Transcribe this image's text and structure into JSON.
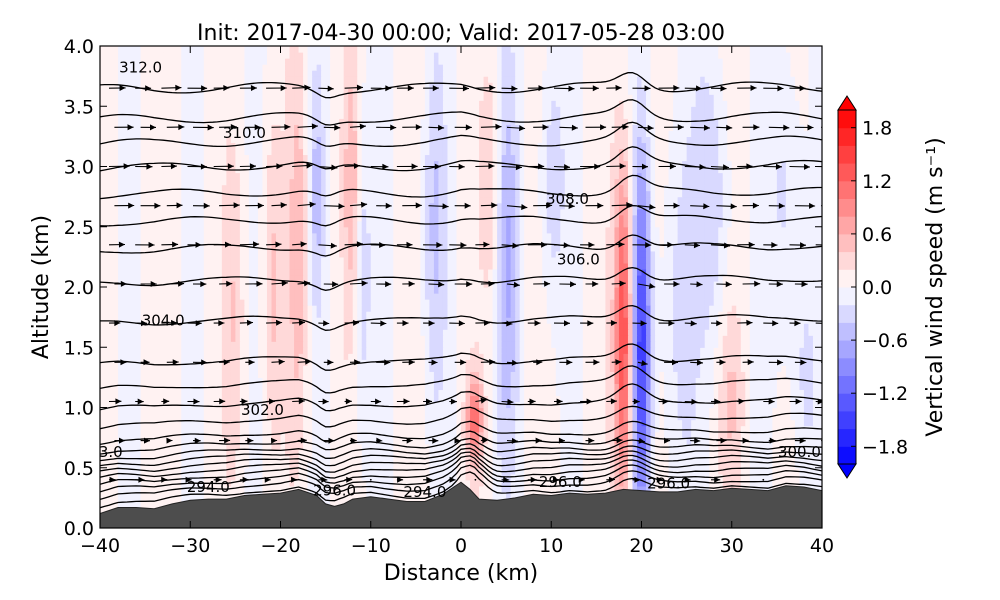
{
  "chart_data": {
    "type": "contour",
    "title": "Init: 2017-04-30 00:00; Valid: 2017-05-28 03:00",
    "xlabel": "Distance (km)",
    "ylabel": "Altitude (km)",
    "xlim": [
      -40,
      40
    ],
    "ylim": [
      0.0,
      4.0
    ],
    "x_ticks": [
      -40,
      -30,
      -20,
      -10,
      0,
      10,
      20,
      30,
      40
    ],
    "x_tick_labels": [
      "−40",
      "−30",
      "−20",
      "−10",
      "0",
      "10",
      "20",
      "30",
      "40"
    ],
    "y_ticks": [
      0.0,
      0.5,
      1.0,
      1.5,
      2.0,
      2.5,
      3.0,
      3.5,
      4.0
    ],
    "y_tick_labels": [
      "0.0",
      "0.5",
      "1.0",
      "1.5",
      "2.0",
      "2.5",
      "3.0",
      "3.5",
      "4.0"
    ],
    "colorbar": {
      "label": "Vertical wind speed (m s⁻¹)",
      "range": [
        -2.0,
        2.0
      ],
      "levels": [
        -2.0,
        -1.8,
        -1.6,
        -1.4,
        -1.2,
        -1.0,
        -0.8,
        -0.6,
        -0.4,
        -0.2,
        0.0,
        0.2,
        0.4,
        0.6,
        0.8,
        1.0,
        1.2,
        1.4,
        1.6,
        1.8,
        2.0
      ],
      "tick_values": [
        -1.8,
        -1.2,
        -0.6,
        0.0,
        0.6,
        1.2,
        1.8
      ],
      "tick_labels": [
        "−1.8",
        "−1.2",
        "−0.6",
        "0.0",
        "0.6",
        "1.2",
        "1.8"
      ],
      "colormap": "bwr"
    },
    "terrain": {
      "x": [
        -40,
        -38,
        -36,
        -34,
        -32,
        -30,
        -28,
        -26,
        -24,
        -22,
        -20,
        -18,
        -16,
        -15,
        -14,
        -13,
        -12,
        -10,
        -8,
        -6,
        -4,
        -2,
        0,
        1,
        2,
        4,
        6,
        8,
        10,
        12,
        14,
        16,
        18,
        20,
        22,
        24,
        26,
        28,
        30,
        32,
        34,
        36,
        38,
        40
      ],
      "z": [
        0.12,
        0.17,
        0.17,
        0.16,
        0.2,
        0.23,
        0.24,
        0.24,
        0.27,
        0.28,
        0.29,
        0.32,
        0.27,
        0.2,
        0.18,
        0.2,
        0.24,
        0.26,
        0.24,
        0.22,
        0.22,
        0.28,
        0.38,
        0.32,
        0.24,
        0.23,
        0.25,
        0.28,
        0.27,
        0.29,
        0.28,
        0.29,
        0.32,
        0.31,
        0.3,
        0.3,
        0.32,
        0.31,
        0.33,
        0.32,
        0.31,
        0.35,
        0.34,
        0.31
      ]
    },
    "theta_contours": {
      "levels": [
        290,
        291,
        292,
        293,
        294,
        295,
        296,
        297,
        298,
        299,
        300,
        301,
        302,
        303,
        304,
        305,
        306,
        307,
        308,
        309,
        310,
        311,
        312
      ],
      "base_altitude_km": [
        0.26,
        0.32,
        0.37,
        0.42,
        0.47,
        0.52,
        0.57,
        0.62,
        0.68,
        0.76,
        0.88,
        1.02,
        1.18,
        1.38,
        1.72,
        2.05,
        2.32,
        2.55,
        2.78,
        3.0,
        3.2,
        3.4,
        3.65
      ],
      "label_units": "K"
    },
    "contour_labels": [
      {
        "text": "312.0",
        "x": -35.5,
        "y": 3.82
      },
      {
        "text": "310.0",
        "x": -24.0,
        "y": 3.28
      },
      {
        "text": "308.0",
        "x": 11.8,
        "y": 2.73
      },
      {
        "text": "306.0",
        "x": 13.0,
        "y": 2.23
      },
      {
        "text": "304.0",
        "x": -33.0,
        "y": 1.72
      },
      {
        "text": "302.0",
        "x": -22.0,
        "y": 0.98
      },
      {
        "text": "3.0",
        "x": -38.8,
        "y": 0.63
      },
      {
        "text": "300.0",
        "x": 37.5,
        "y": 0.63
      },
      {
        "text": "294.0",
        "x": -28.0,
        "y": 0.34
      },
      {
        "text": "296.0",
        "x": -14.0,
        "y": 0.31
      },
      {
        "text": "294.0",
        "x": -4.0,
        "y": 0.3
      },
      {
        "text": "296.0",
        "x": 11.0,
        "y": 0.38
      },
      {
        "text": "296.0",
        "x": 23.0,
        "y": 0.37
      }
    ],
    "w_features": [
      {
        "x": 18.0,
        "y": 1.6,
        "sx": 1.0,
        "sy": 1.4,
        "w": 1.4
      },
      {
        "x": 20.0,
        "y": 1.5,
        "sx": 1.0,
        "sy": 1.5,
        "w": -1.5
      },
      {
        "x": 1.5,
        "y": 0.9,
        "sx": 0.9,
        "sy": 0.35,
        "w": 1.0
      },
      {
        "x": 5.0,
        "y": 2.2,
        "sx": 1.5,
        "sy": 1.6,
        "w": -0.6
      },
      {
        "x": -3.0,
        "y": 2.5,
        "sx": 1.3,
        "sy": 1.5,
        "w": -0.45
      },
      {
        "x": -18.0,
        "y": 2.3,
        "sx": 1.0,
        "sy": 1.4,
        "w": 0.5
      },
      {
        "x": -16.0,
        "y": 2.8,
        "sx": 0.8,
        "sy": 1.0,
        "w": -0.45
      },
      {
        "x": -12.0,
        "y": 2.8,
        "sx": 1.0,
        "sy": 1.1,
        "w": 0.5
      },
      {
        "x": -11.0,
        "y": 2.2,
        "sx": 1.0,
        "sy": 1.4,
        "w": -0.45
      },
      {
        "x": 3.5,
        "y": 2.8,
        "sx": 1.0,
        "sy": 1.0,
        "w": 0.45
      },
      {
        "x": 10.0,
        "y": 2.9,
        "sx": 1.4,
        "sy": 1.1,
        "w": -0.4
      },
      {
        "x": 24.0,
        "y": 1.8,
        "sx": 2.0,
        "sy": 1.8,
        "w": -0.35
      },
      {
        "x": 28.0,
        "y": 2.7,
        "sx": 2.0,
        "sy": 1.2,
        "w": -0.4
      },
      {
        "x": 36.0,
        "y": 2.8,
        "sx": 1.8,
        "sy": 1.3,
        "w": -0.35
      },
      {
        "x": -21.0,
        "y": 2.0,
        "sx": 1.0,
        "sy": 1.3,
        "w": 0.4
      },
      {
        "x": -25.0,
        "y": 1.8,
        "sx": 1.0,
        "sy": 1.2,
        "w": 0.3
      },
      {
        "x": 38.0,
        "y": 1.2,
        "sx": 1.5,
        "sy": 1.0,
        "w": -0.3
      },
      {
        "x": 30.0,
        "y": 1.1,
        "sx": 1.5,
        "sy": 0.8,
        "w": 0.3
      }
    ],
    "w_background": 0.12,
    "wind_vector_grid": {
      "x_start": -39.0,
      "x_step": 2.9,
      "x_count": 28,
      "y_start": 0.4,
      "y_step": 0.325,
      "y_count": 11,
      "typical_speed_m_s": 10,
      "direction": "eastward"
    }
  }
}
